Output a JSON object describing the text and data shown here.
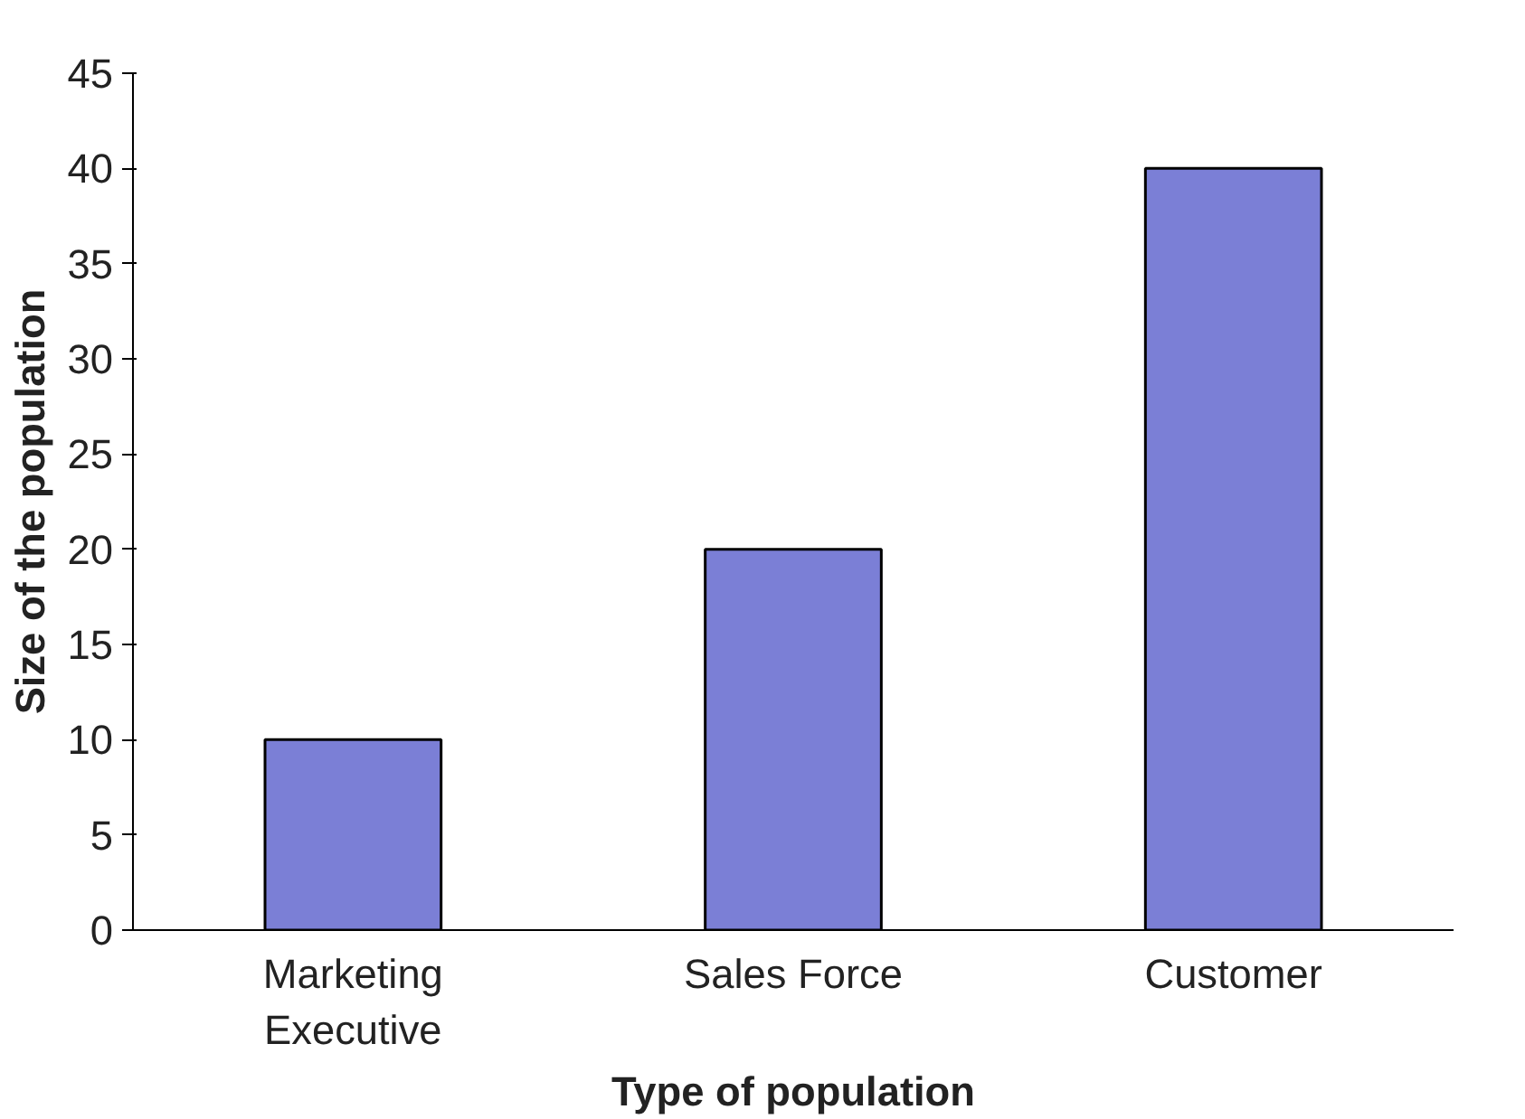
{
  "chart_data": {
    "type": "bar",
    "xlabel": "Type of population",
    "ylabel": "Size of the population",
    "categories": [
      "Marketing\nExecutive",
      "Sales Force",
      "Customer"
    ],
    "values": [
      10,
      20,
      40
    ],
    "color": "#7b7fd6",
    "ylim": [
      0,
      45
    ],
    "yticks": [
      0,
      5,
      10,
      15,
      20,
      25,
      30,
      35,
      40,
      45
    ],
    "grid": false
  }
}
